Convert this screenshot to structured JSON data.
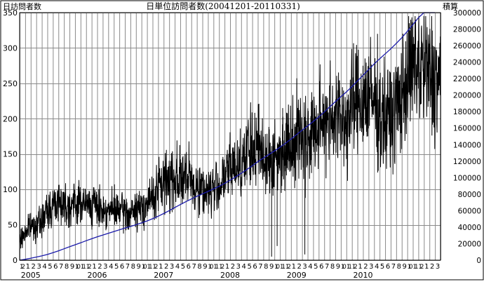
{
  "chart_data": {
    "type": "line",
    "title": "日単位訪問者数(20041201-20110331)",
    "ylabel_left": "日訪問者数",
    "ylabel_right": "積算",
    "y_left_range": [
      0,
      350
    ],
    "y_left_ticks": [
      0,
      50,
      100,
      150,
      200,
      250,
      300,
      350
    ],
    "y_right_range": [
      0,
      300000
    ],
    "y_right_ticks": [
      0,
      20000,
      40000,
      60000,
      80000,
      100000,
      120000,
      140000,
      160000,
      180000,
      200000,
      220000,
      240000,
      260000,
      280000,
      300000
    ],
    "grid": true,
    "month_labels": [
      "12",
      "1",
      "2",
      "3",
      "4",
      "5",
      "6",
      "7",
      "8",
      "9",
      "10",
      "11",
      "12",
      "1",
      "2",
      "3",
      "4",
      "5",
      "6",
      "7",
      "8",
      "9",
      "10",
      "11",
      "12",
      "1",
      "2",
      "3",
      "4",
      "5",
      "6",
      "7",
      "8",
      "9",
      "10",
      "11",
      "12",
      "1",
      "2",
      "3",
      "4",
      "5",
      "6",
      "7",
      "8",
      "9",
      "10",
      "11",
      "12",
      "1",
      "2",
      "3",
      "4",
      "5",
      "6",
      "7",
      "8",
      "9",
      "10",
      "11",
      "12",
      "1",
      "2",
      "3",
      "4",
      "5",
      "6",
      "7",
      "8",
      "9",
      "10",
      "11",
      "12",
      "1",
      "2",
      "3"
    ],
    "year_labels": [
      {
        "year": "2005",
        "month_index": 1
      },
      {
        "year": "2006",
        "month_index": 13
      },
      {
        "year": "2007",
        "month_index": 25
      },
      {
        "year": "2008",
        "month_index": 37
      },
      {
        "year": "2009",
        "month_index": 49
      },
      {
        "year": "2010",
        "month_index": 61
      }
    ],
    "series": [
      {
        "axis": "left",
        "color": "#000000",
        "monthly_mean": [
          25,
          40,
          48,
          50,
          55,
          70,
          78,
          85,
          80,
          78,
          80,
          82,
          78,
          80,
          75,
          72,
          70,
          72,
          70,
          68,
          65,
          70,
          75,
          80,
          88,
          100,
          110,
          115,
          120,
          118,
          115,
          110,
          105,
          100,
          98,
          100,
          105,
          115,
          130,
          135,
          140,
          150,
          155,
          160,
          150,
          145,
          140,
          150,
          160,
          170,
          180,
          175,
          170,
          180,
          185,
          200,
          210,
          205,
          200,
          195,
          215,
          225,
          230,
          230,
          225,
          210,
          200,
          200,
          215,
          235,
          255,
          270,
          280,
          270,
          265,
          255
        ],
        "monthly_spread": [
          10,
          12,
          12,
          12,
          15,
          18,
          18,
          20,
          18,
          18,
          18,
          18,
          18,
          18,
          16,
          16,
          16,
          16,
          16,
          16,
          16,
          16,
          18,
          20,
          22,
          25,
          28,
          30,
          30,
          28,
          26,
          26,
          24,
          24,
          22,
          22,
          24,
          26,
          30,
          30,
          32,
          35,
          36,
          36,
          34,
          34,
          32,
          34,
          36,
          38,
          40,
          40,
          40,
          40,
          42,
          45,
          45,
          45,
          45,
          45,
          48,
          50,
          50,
          50,
          50,
          48,
          46,
          46,
          48,
          52,
          55,
          58,
          60,
          58,
          56,
          56
        ]
      },
      {
        "axis": "right",
        "color": "#1a1aaa",
        "name": "",
        "monthly_cumulative": [
          0,
          1000,
          2300,
          3700,
          5200,
          6900,
          9000,
          11300,
          13800,
          16200,
          18600,
          21000,
          23500,
          25900,
          28200,
          30400,
          32500,
          34600,
          36700,
          38800,
          40800,
          42900,
          45100,
          47500,
          50200,
          53200,
          56500,
          60000,
          63700,
          67300,
          70800,
          74100,
          77300,
          80300,
          83300,
          86300,
          89500,
          93000,
          96900,
          101000,
          105200,
          109700,
          114400,
          119200,
          123700,
          128100,
          132300,
          136800,
          141600,
          146700,
          152100,
          157400,
          162500,
          167900,
          173500,
          179500,
          185800,
          192000,
          198000,
          203900,
          210300,
          217100,
          224000,
          230900,
          237700,
          244000,
          250000,
          256000,
          262500,
          269500,
          277200,
          285300,
          293700,
          301800,
          309800,
          317400
        ]
      }
    ],
    "spikes": [
      {
        "month_index": 45,
        "value": 5
      },
      {
        "month_index": 46,
        "value": 20
      },
      {
        "month_index": 47,
        "value": 215
      },
      {
        "month_index": 51,
        "value": 8
      }
    ]
  }
}
